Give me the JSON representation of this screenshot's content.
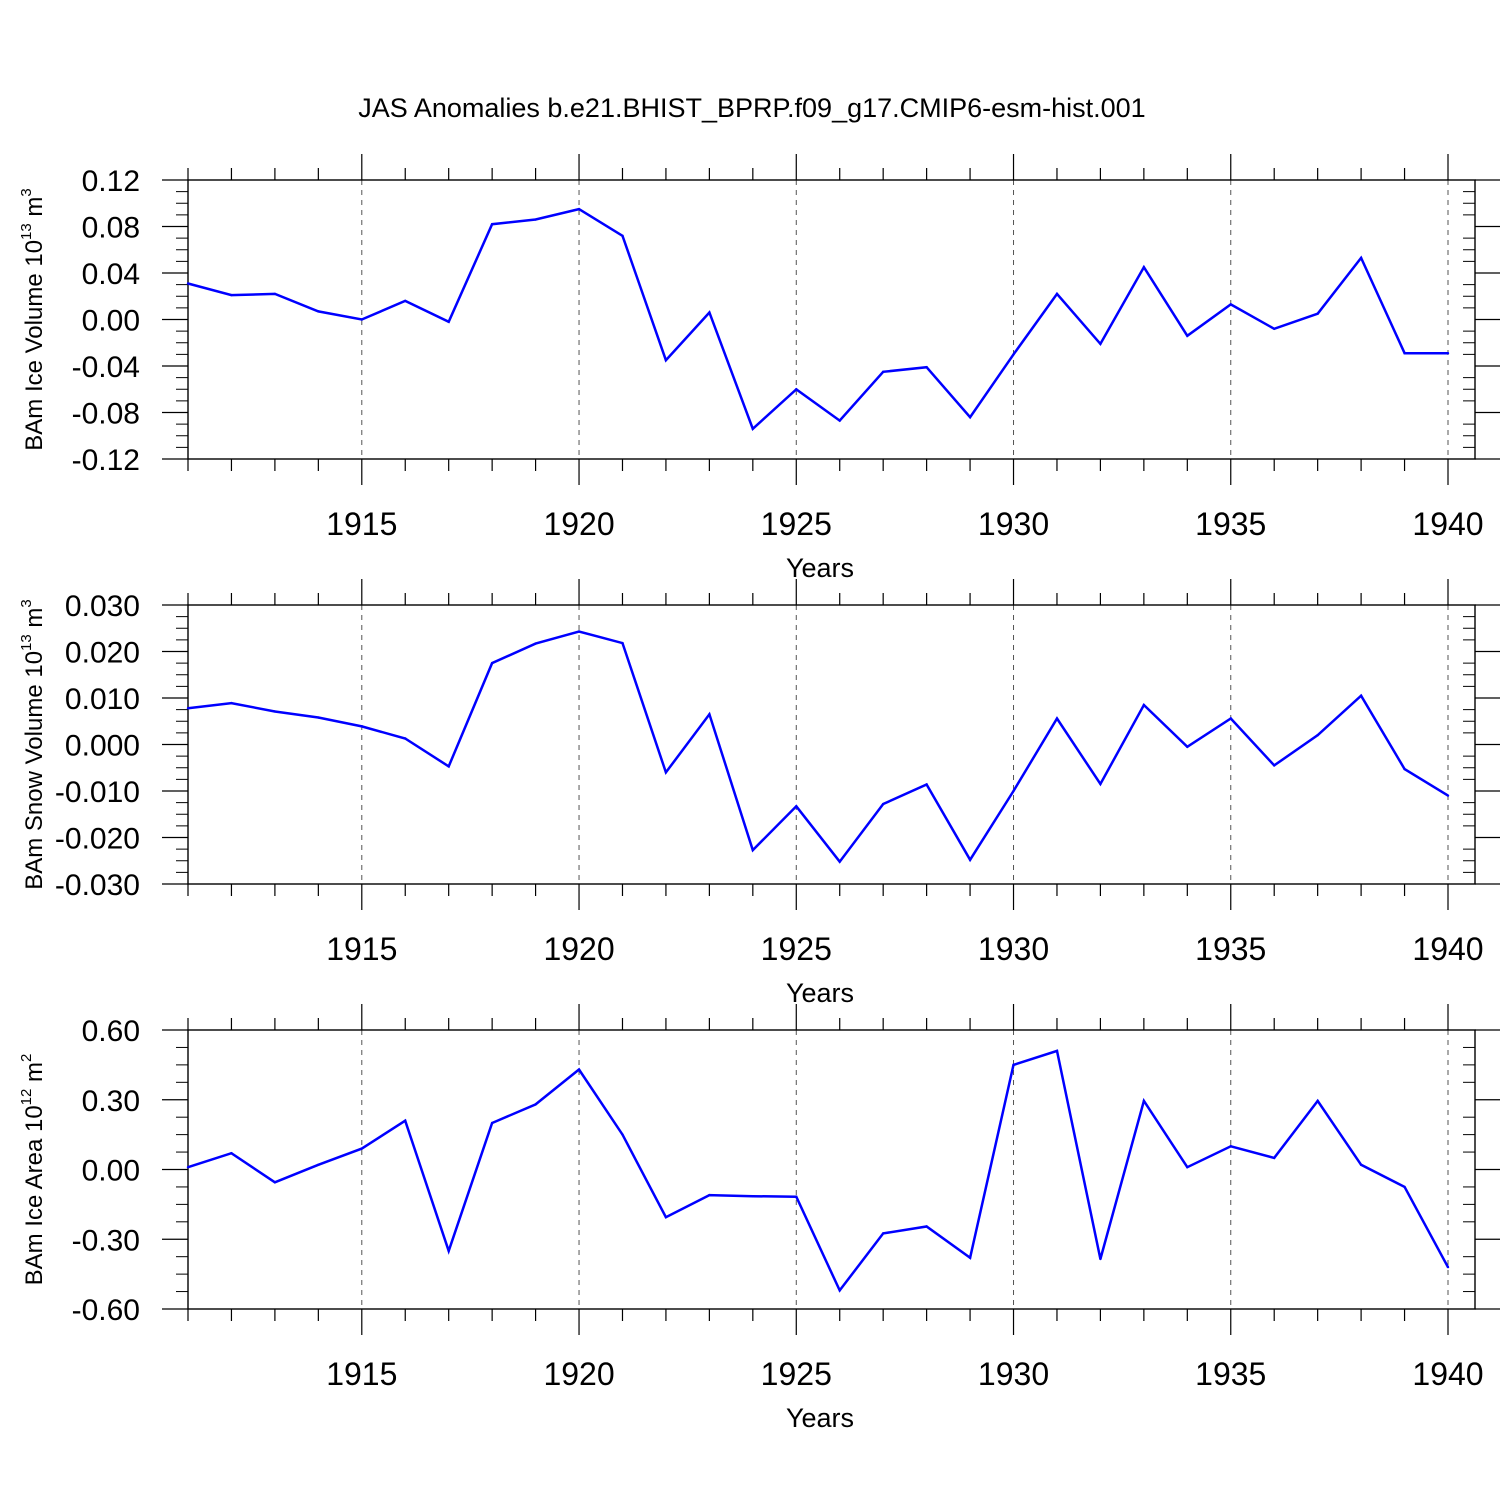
{
  "title": "JAS Anomalies b.e21.BHIST_BPRP.f09_g17.CMIP6-esm-hist.001",
  "colors": {
    "line": "#0000ff",
    "axis": "#000000",
    "grid": "#555555"
  },
  "chart_data": [
    {
      "type": "line",
      "ylabel": {
        "main": "BAm Ice Volume 10",
        "exp": "13",
        "unit": " m",
        "unit_exp": "3"
      },
      "xlabel": "Years",
      "xlim": [
        1911,
        1940
      ],
      "xticks": [
        1915,
        1920,
        1925,
        1930,
        1935,
        1940
      ],
      "xtick_labels": [
        "1915",
        "1920",
        "1925",
        "1930",
        "1935",
        "1940"
      ],
      "ylim": [
        -0.12,
        0.12
      ],
      "yticks": [
        -0.12,
        -0.08,
        -0.04,
        0.0,
        0.04,
        0.08,
        0.12
      ],
      "ytick_labels": [
        "-0.12",
        "-0.08",
        "-0.04",
        "0.00",
        "0.04",
        "0.08",
        "0.12"
      ],
      "x": [
        1911,
        1912,
        1913,
        1914,
        1915,
        1916,
        1917,
        1918,
        1919,
        1920,
        1921,
        1922,
        1923,
        1924,
        1925,
        1926,
        1927,
        1928,
        1929,
        1930,
        1931,
        1932,
        1933,
        1934,
        1935,
        1936,
        1937,
        1938,
        1939,
        1940
      ],
      "values": [
        0.031,
        0.021,
        0.022,
        0.007,
        0.0,
        0.016,
        -0.002,
        0.082,
        0.086,
        0.095,
        0.072,
        -0.035,
        0.006,
        -0.094,
        -0.06,
        -0.087,
        -0.045,
        -0.041,
        -0.084,
        -0.03,
        0.022,
        -0.021,
        0.045,
        -0.014,
        0.013,
        -0.008,
        0.005,
        0.053,
        -0.029,
        -0.029
      ]
    },
    {
      "type": "line",
      "ylabel": {
        "main": "BAm Snow Volume 10",
        "exp": "13",
        "unit": " m",
        "unit_exp": "3"
      },
      "xlabel": "Years",
      "xlim": [
        1911,
        1940
      ],
      "xticks": [
        1915,
        1920,
        1925,
        1930,
        1935,
        1940
      ],
      "xtick_labels": [
        "1915",
        "1920",
        "1925",
        "1930",
        "1935",
        "1940"
      ],
      "ylim": [
        -0.03,
        0.03
      ],
      "yticks": [
        -0.03,
        -0.02,
        -0.01,
        0.0,
        0.01,
        0.02,
        0.03
      ],
      "ytick_labels": [
        "-0.030",
        "-0.020",
        "-0.010",
        "0.000",
        "0.010",
        "0.020",
        "0.030"
      ],
      "x": [
        1911,
        1912,
        1913,
        1914,
        1915,
        1916,
        1917,
        1918,
        1919,
        1920,
        1921,
        1922,
        1923,
        1924,
        1925,
        1926,
        1927,
        1928,
        1929,
        1930,
        1931,
        1932,
        1933,
        1934,
        1935,
        1936,
        1937,
        1938,
        1939,
        1940
      ],
      "values": [
        0.0078,
        0.0089,
        0.0071,
        0.0058,
        0.0039,
        0.0013,
        -0.0047,
        0.0175,
        0.0217,
        0.0243,
        0.0218,
        -0.006,
        0.0065,
        -0.0227,
        -0.0133,
        -0.0252,
        -0.0128,
        -0.0086,
        -0.0248,
        -0.01,
        0.0056,
        -0.0085,
        0.0085,
        -0.0005,
        0.0056,
        -0.0045,
        0.002,
        0.0105,
        -0.0053,
        -0.011
      ]
    },
    {
      "type": "line",
      "ylabel": {
        "main": "BAm Ice Area 10",
        "exp": "12",
        "unit": " m",
        "unit_exp": "2"
      },
      "xlabel": "Years",
      "xlim": [
        1911,
        1940
      ],
      "xticks": [
        1915,
        1920,
        1925,
        1930,
        1935,
        1940
      ],
      "xtick_labels": [
        "1915",
        "1920",
        "1925",
        "1930",
        "1935",
        "1940"
      ],
      "ylim": [
        -0.6,
        0.6
      ],
      "yticks": [
        -0.6,
        -0.3,
        0.0,
        0.3,
        0.6
      ],
      "ytick_labels": [
        "-0.60",
        "-0.30",
        "0.00",
        "0.30",
        "0.60"
      ],
      "x": [
        1911,
        1912,
        1913,
        1914,
        1915,
        1916,
        1917,
        1918,
        1919,
        1920,
        1921,
        1922,
        1923,
        1924,
        1925,
        1926,
        1927,
        1928,
        1929,
        1930,
        1931,
        1932,
        1933,
        1934,
        1935,
        1936,
        1937,
        1938,
        1939,
        1940
      ],
      "values": [
        0.01,
        0.07,
        -0.055,
        0.02,
        0.09,
        0.21,
        -0.35,
        0.2,
        0.28,
        0.43,
        0.15,
        -0.205,
        -0.11,
        -0.115,
        -0.117,
        -0.52,
        -0.275,
        -0.245,
        -0.38,
        0.45,
        0.51,
        -0.385,
        0.295,
        0.01,
        0.1,
        0.05,
        0.295,
        0.02,
        -0.075,
        -0.42
      ]
    }
  ]
}
